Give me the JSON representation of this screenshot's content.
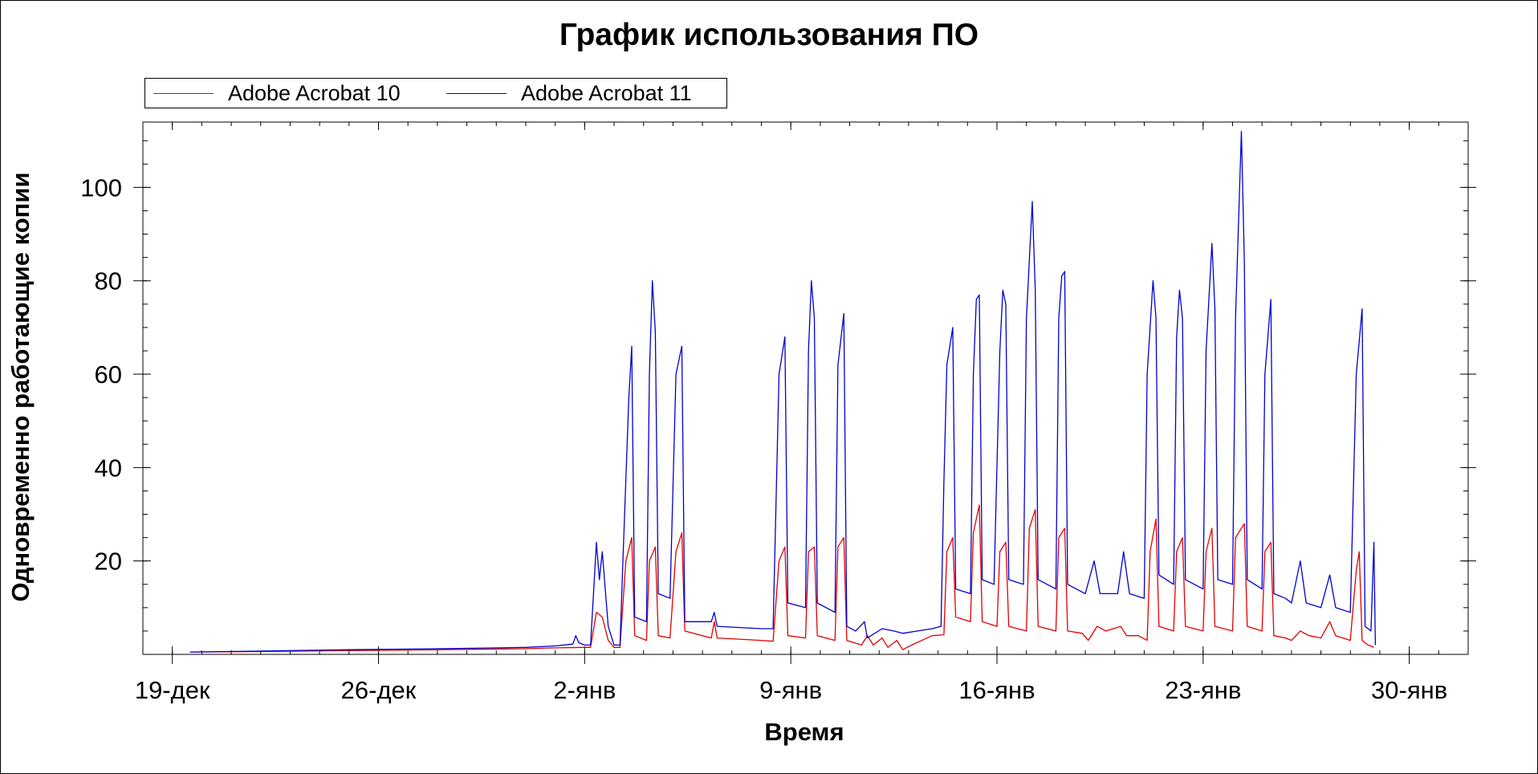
{
  "chart_data": {
    "type": "line",
    "title": "График использования ПО",
    "xlabel": "Время",
    "ylabel": "Одновременно работающие копии",
    "x_ticks": [
      "19-дек",
      "26-дек",
      "2-янв",
      "9-янв",
      "16-янв",
      "23-янв",
      "30-янв"
    ],
    "x_tick_days": [
      0,
      7,
      14,
      21,
      28,
      35,
      42
    ],
    "y_ticks": [
      20,
      40,
      60,
      80,
      100
    ],
    "xlim_days": [
      -1,
      44
    ],
    "ylim": [
      0,
      114
    ],
    "legend_position": "top-left",
    "grid": false,
    "series": [
      {
        "name": "Adobe Acrobat 10",
        "color": "#e00000",
        "points": [
          [
            0.6,
            0.5
          ],
          [
            3,
            0.6
          ],
          [
            6,
            0.8
          ],
          [
            9,
            1
          ],
          [
            12,
            1.2
          ],
          [
            13,
            1.4
          ],
          [
            14,
            1.5
          ],
          [
            14.2,
            1.5
          ],
          [
            14.4,
            9
          ],
          [
            14.6,
            8
          ],
          [
            14.8,
            3
          ],
          [
            15,
            1.5
          ],
          [
            15.2,
            1.5
          ],
          [
            15.4,
            20
          ],
          [
            15.6,
            25
          ],
          [
            15.7,
            4
          ],
          [
            16.1,
            3
          ],
          [
            16.2,
            20
          ],
          [
            16.4,
            23
          ],
          [
            16.5,
            4
          ],
          [
            16.9,
            3.5
          ],
          [
            17.1,
            22
          ],
          [
            17.3,
            26
          ],
          [
            17.4,
            5
          ],
          [
            18,
            4
          ],
          [
            18.3,
            3.5
          ],
          [
            18.4,
            7
          ],
          [
            18.5,
            3.5
          ],
          [
            20,
            3
          ],
          [
            20.4,
            2.8
          ],
          [
            20.6,
            20
          ],
          [
            20.8,
            23
          ],
          [
            20.9,
            4
          ],
          [
            21.5,
            3.5
          ],
          [
            21.6,
            22
          ],
          [
            21.8,
            23
          ],
          [
            21.9,
            4
          ],
          [
            22.5,
            3
          ],
          [
            22.6,
            23
          ],
          [
            22.8,
            25
          ],
          [
            22.9,
            3
          ],
          [
            23.4,
            2
          ],
          [
            23.6,
            4
          ],
          [
            23.8,
            2
          ],
          [
            24.1,
            3.5
          ],
          [
            24.3,
            1.5
          ],
          [
            24.6,
            3
          ],
          [
            24.8,
            1
          ],
          [
            25.1,
            2
          ],
          [
            25.8,
            4
          ],
          [
            26.2,
            4.2
          ],
          [
            26.3,
            22
          ],
          [
            26.5,
            25
          ],
          [
            26.6,
            8
          ],
          [
            27.1,
            7
          ],
          [
            27.2,
            26
          ],
          [
            27.4,
            32
          ],
          [
            27.5,
            7
          ],
          [
            28,
            6
          ],
          [
            28.1,
            22
          ],
          [
            28.3,
            24
          ],
          [
            28.4,
            6
          ],
          [
            29,
            5
          ],
          [
            29.1,
            27
          ],
          [
            29.3,
            31
          ],
          [
            29.4,
            6
          ],
          [
            30,
            5
          ],
          [
            30.1,
            25
          ],
          [
            30.3,
            27
          ],
          [
            30.4,
            5
          ],
          [
            30.9,
            4.5
          ],
          [
            31.1,
            3
          ],
          [
            31.4,
            6
          ],
          [
            31.7,
            5
          ],
          [
            32.2,
            6
          ],
          [
            32.4,
            4
          ],
          [
            32.8,
            4
          ],
          [
            33.1,
            3
          ],
          [
            33.2,
            22
          ],
          [
            33.4,
            29
          ],
          [
            33.5,
            6
          ],
          [
            34,
            5
          ],
          [
            34.1,
            22
          ],
          [
            34.3,
            25
          ],
          [
            34.4,
            6
          ],
          [
            35,
            5
          ],
          [
            35.1,
            22
          ],
          [
            35.3,
            27
          ],
          [
            35.4,
            6
          ],
          [
            36,
            5
          ],
          [
            36.1,
            25
          ],
          [
            36.4,
            28
          ],
          [
            36.5,
            6
          ],
          [
            37,
            5
          ],
          [
            37.1,
            22
          ],
          [
            37.3,
            24
          ],
          [
            37.4,
            4
          ],
          [
            37.8,
            3.5
          ],
          [
            38,
            3
          ],
          [
            38.3,
            5
          ],
          [
            38.6,
            4
          ],
          [
            39,
            3.5
          ],
          [
            39.3,
            7
          ],
          [
            39.5,
            4
          ],
          [
            40,
            3
          ],
          [
            40.2,
            18
          ],
          [
            40.3,
            22
          ],
          [
            40.4,
            3
          ],
          [
            40.6,
            2
          ],
          [
            40.8,
            1.5
          ]
        ]
      },
      {
        "name": "Adobe Acrobat 11",
        "color": "#0000d0",
        "points": [
          [
            0.6,
            0.5
          ],
          [
            3,
            0.7
          ],
          [
            6,
            1
          ],
          [
            9,
            1.2
          ],
          [
            12,
            1.5
          ],
          [
            13,
            1.8
          ],
          [
            13.6,
            2.2
          ],
          [
            13.7,
            4
          ],
          [
            13.8,
            2.5
          ],
          [
            14,
            2
          ],
          [
            14.2,
            2
          ],
          [
            14.4,
            24
          ],
          [
            14.5,
            16
          ],
          [
            14.6,
            22
          ],
          [
            14.8,
            6
          ],
          [
            15,
            2
          ],
          [
            15.2,
            2
          ],
          [
            15.3,
            20
          ],
          [
            15.5,
            55
          ],
          [
            15.6,
            66
          ],
          [
            15.7,
            8
          ],
          [
            16.1,
            7
          ],
          [
            16.2,
            60
          ],
          [
            16.3,
            80
          ],
          [
            16.4,
            69
          ],
          [
            16.5,
            13
          ],
          [
            16.9,
            12
          ],
          [
            17.1,
            60
          ],
          [
            17.3,
            66
          ],
          [
            17.4,
            7
          ],
          [
            18,
            7
          ],
          [
            18.3,
            7
          ],
          [
            18.4,
            9
          ],
          [
            18.5,
            6
          ],
          [
            20,
            5.5
          ],
          [
            20.4,
            5.5
          ],
          [
            20.6,
            60
          ],
          [
            20.8,
            68
          ],
          [
            20.9,
            11
          ],
          [
            21.5,
            10
          ],
          [
            21.6,
            65
          ],
          [
            21.7,
            80
          ],
          [
            21.8,
            72
          ],
          [
            21.9,
            11
          ],
          [
            22.5,
            9
          ],
          [
            22.6,
            62
          ],
          [
            22.8,
            73
          ],
          [
            22.9,
            6
          ],
          [
            23.2,
            5
          ],
          [
            23.5,
            7
          ],
          [
            23.6,
            3.5
          ],
          [
            24.1,
            5.5
          ],
          [
            24.5,
            5
          ],
          [
            24.8,
            4.5
          ],
          [
            25.3,
            5
          ],
          [
            25.8,
            5.5
          ],
          [
            26.1,
            6
          ],
          [
            26.2,
            37
          ],
          [
            26.3,
            62
          ],
          [
            26.5,
            70
          ],
          [
            26.6,
            14
          ],
          [
            27.1,
            13
          ],
          [
            27.2,
            60
          ],
          [
            27.3,
            76
          ],
          [
            27.4,
            77
          ],
          [
            27.5,
            16
          ],
          [
            27.9,
            15
          ],
          [
            28.1,
            65
          ],
          [
            28.2,
            78
          ],
          [
            28.3,
            75
          ],
          [
            28.4,
            16
          ],
          [
            28.9,
            15
          ],
          [
            29,
            72
          ],
          [
            29.2,
            97
          ],
          [
            29.3,
            78
          ],
          [
            29.4,
            16
          ],
          [
            30,
            14
          ],
          [
            30.1,
            72
          ],
          [
            30.2,
            81
          ],
          [
            30.3,
            82
          ],
          [
            30.4,
            15
          ],
          [
            31,
            13
          ],
          [
            31.3,
            20
          ],
          [
            31.5,
            13
          ],
          [
            32.1,
            13
          ],
          [
            32.3,
            22
          ],
          [
            32.5,
            13
          ],
          [
            33,
            12
          ],
          [
            33.1,
            60
          ],
          [
            33.3,
            80
          ],
          [
            33.4,
            72
          ],
          [
            33.5,
            17
          ],
          [
            34,
            15
          ],
          [
            34.1,
            68
          ],
          [
            34.2,
            78
          ],
          [
            34.3,
            72
          ],
          [
            34.4,
            16
          ],
          [
            35,
            14
          ],
          [
            35.1,
            65
          ],
          [
            35.3,
            88
          ],
          [
            35.4,
            74
          ],
          [
            35.5,
            16
          ],
          [
            36,
            15
          ],
          [
            36.1,
            72
          ],
          [
            36.3,
            112
          ],
          [
            36.4,
            84
          ],
          [
            36.5,
            16
          ],
          [
            37,
            14
          ],
          [
            37.1,
            60
          ],
          [
            37.3,
            76
          ],
          [
            37.4,
            13
          ],
          [
            37.8,
            12
          ],
          [
            38,
            11
          ],
          [
            38.3,
            20
          ],
          [
            38.5,
            11
          ],
          [
            39,
            10
          ],
          [
            39.3,
            17
          ],
          [
            39.5,
            10
          ],
          [
            40,
            9
          ],
          [
            40.2,
            60
          ],
          [
            40.4,
            74
          ],
          [
            40.5,
            6
          ],
          [
            40.7,
            5
          ],
          [
            40.8,
            24
          ],
          [
            40.85,
            2
          ]
        ]
      }
    ]
  }
}
